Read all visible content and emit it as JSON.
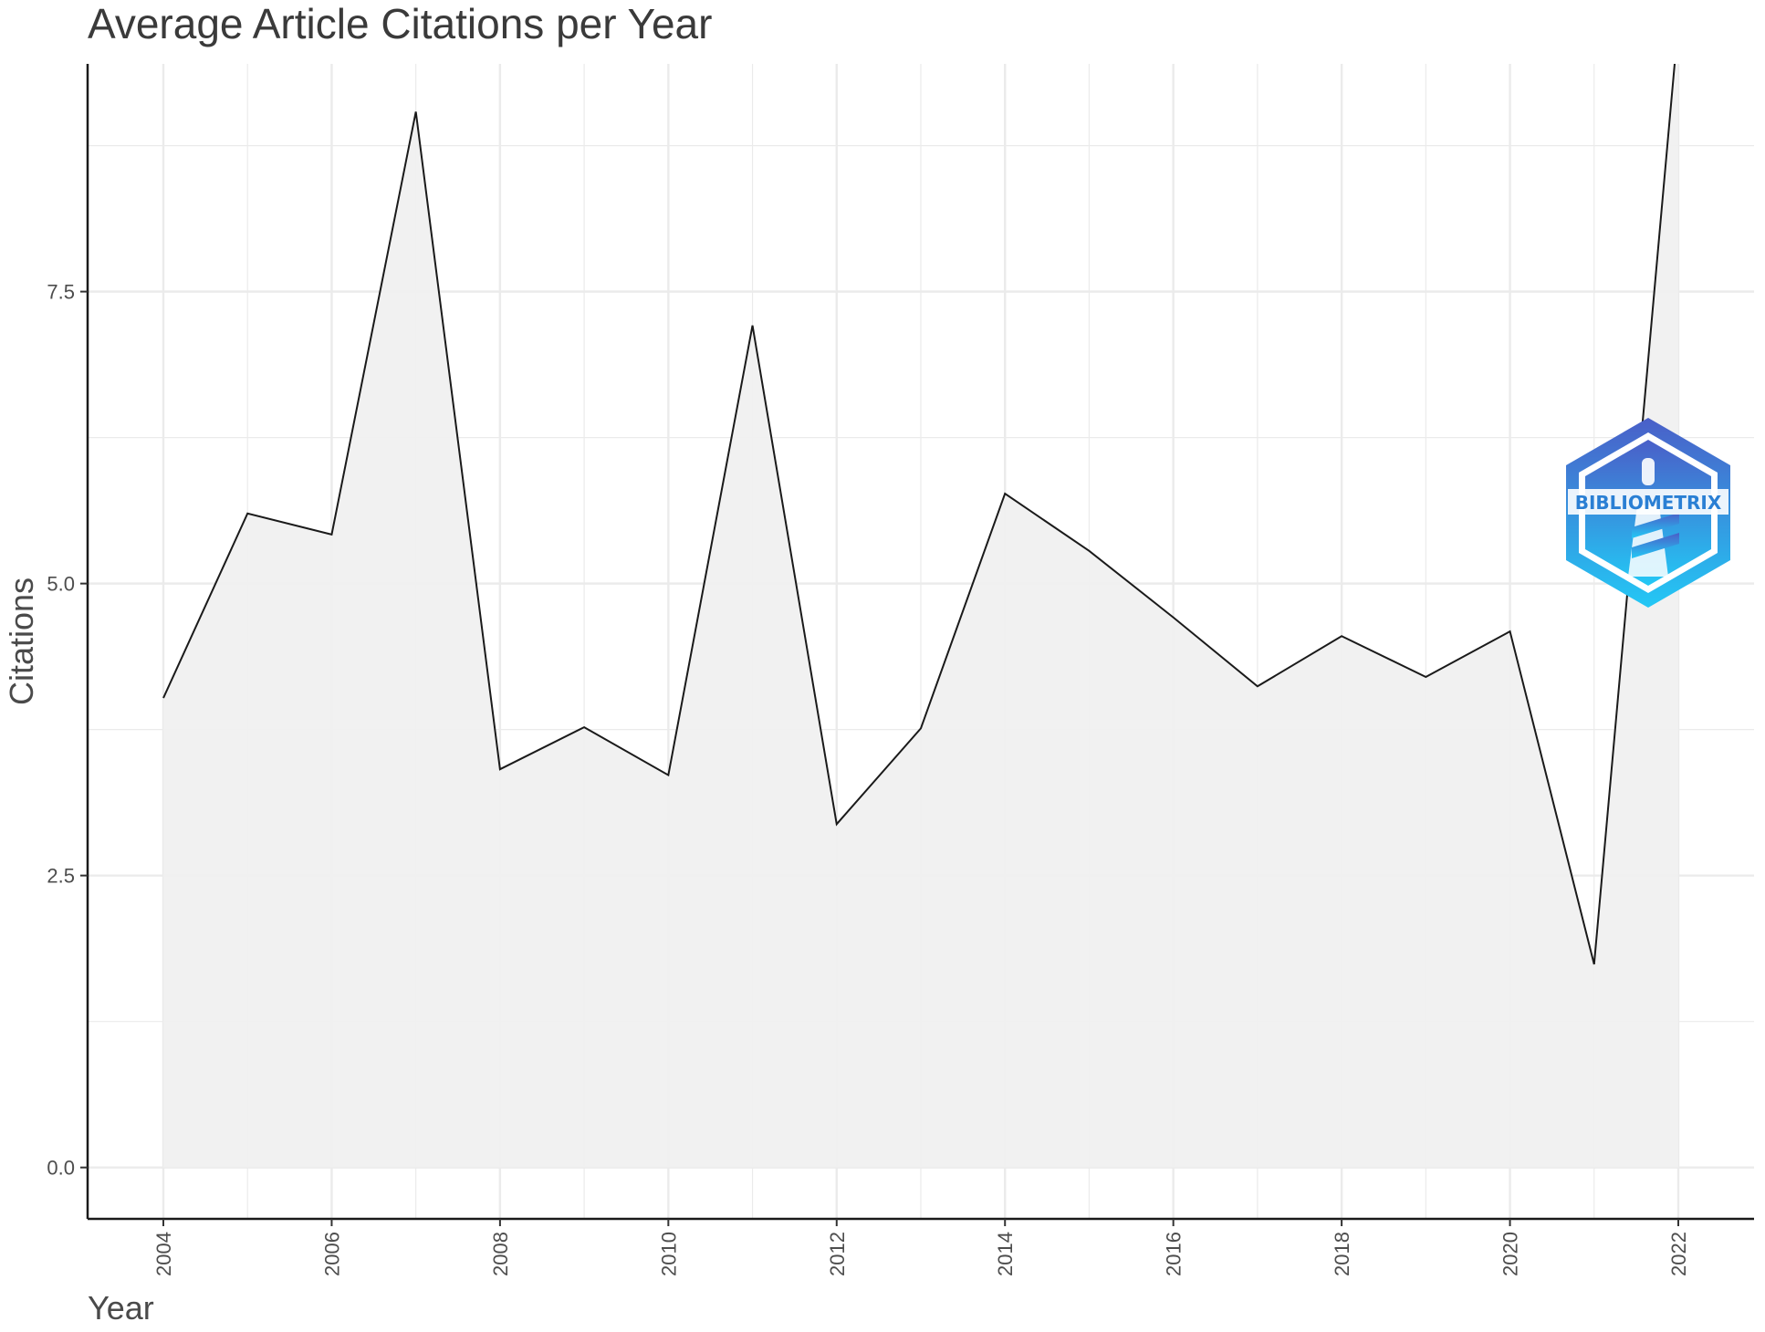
{
  "chart_data": {
    "type": "area",
    "title": "Average Article Citations per Year",
    "xlabel": "Year",
    "ylabel": "Citations",
    "x": [
      2004,
      2005,
      2006,
      2007,
      2008,
      2009,
      2010,
      2011,
      2012,
      2013,
      2014,
      2015,
      2016,
      2017,
      2018,
      2019,
      2020,
      2021,
      2022
    ],
    "series": [
      {
        "values": [
          4.02,
          5.6,
          5.42,
          9.04,
          3.41,
          3.77,
          3.36,
          7.21,
          2.94,
          3.76,
          5.77,
          5.28,
          4.71,
          4.12,
          4.55,
          4.2,
          4.59,
          1.74,
          9.8
        ]
      }
    ],
    "xticks": [
      "2004",
      "2006",
      "2008",
      "2010",
      "2012",
      "2014",
      "2016",
      "2018",
      "2020",
      "2022"
    ],
    "yticks": [
      "0.0",
      "2.5",
      "5.0",
      "7.5"
    ],
    "xlim": [
      2003.1,
      2022.9
    ],
    "ylim": [
      -0.44,
      9.45
    ],
    "grid": true,
    "legend": "none",
    "colors": {
      "line": "#1a1a1a",
      "fill": "#f0f0f0",
      "grid": "#ebebeb",
      "axis": "#1a1a1a"
    }
  },
  "logo": {
    "text": "BIBLIOMETRIX",
    "icon": "bibliometrix-hexagon-logo",
    "colors": {
      "top": "#4a5fc8",
      "bottom": "#23c8f5"
    }
  }
}
